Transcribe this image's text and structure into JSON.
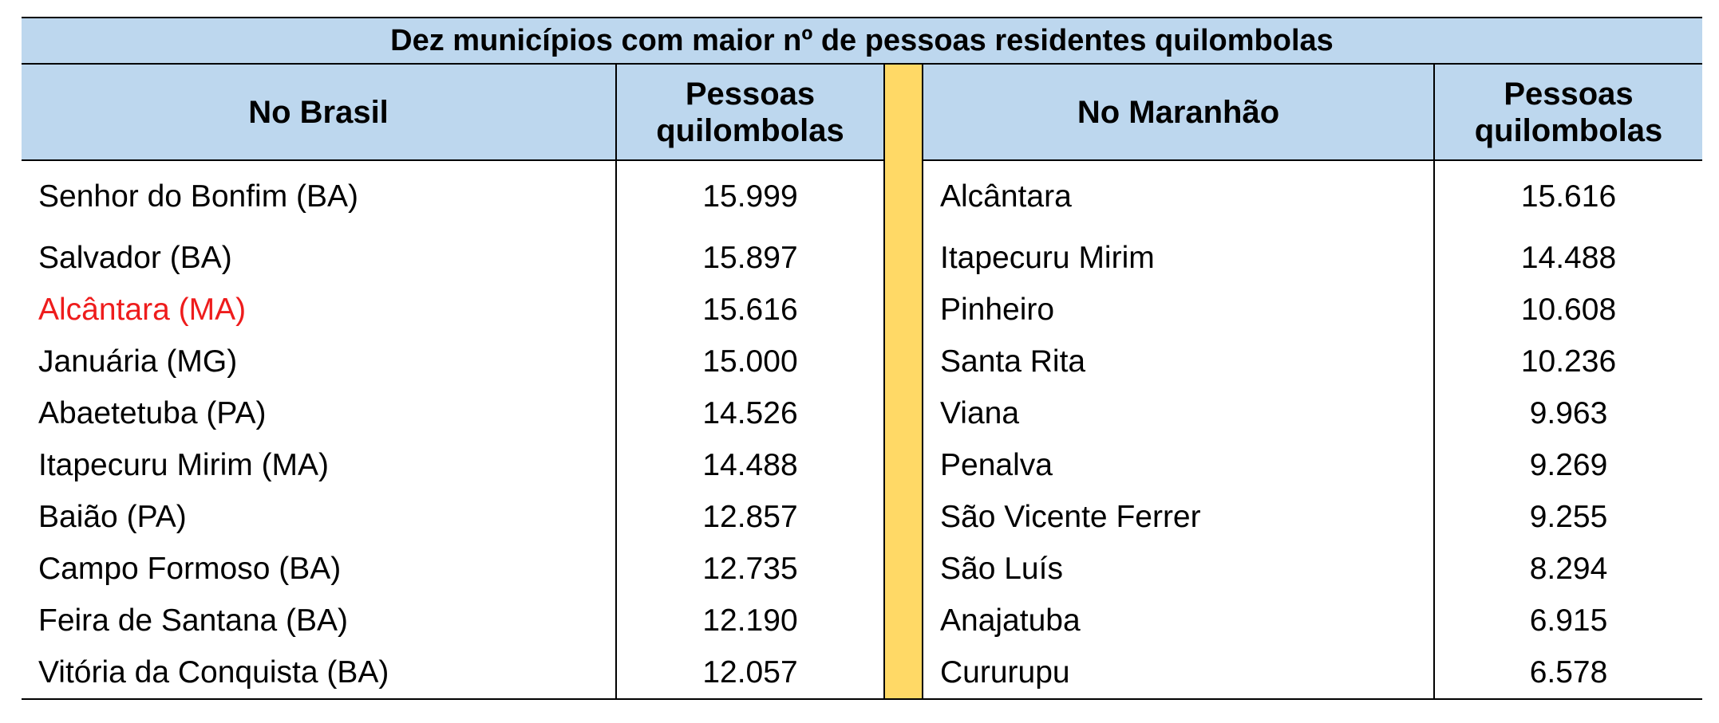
{
  "table": {
    "title": "Dez municípios com maior nº de pessoas residentes quilombolas",
    "headers": {
      "brasil": "No Brasil",
      "brasil_count": "Pessoas quilombolas",
      "maranhao": "No Maranhão",
      "maranhao_count": "Pessoas quilombolas"
    },
    "colors": {
      "header_bg": "#bdd7ee",
      "separator_bg": "#ffd966",
      "highlight_text": "#ee1c1c"
    },
    "rows": [
      {
        "brasil_city": "Senhor do Bonfim (BA)",
        "brasil_value": "15.999",
        "maranhao_city": "Alcântara",
        "maranhao_value": "15.616"
      },
      {
        "brasil_city": "Salvador (BA)",
        "brasil_value": "15.897",
        "maranhao_city": "Itapecuru Mirim",
        "maranhao_value": "14.488"
      },
      {
        "brasil_city": "Alcântara (MA)",
        "brasil_value": "15.616",
        "maranhao_city": "Pinheiro",
        "maranhao_value": "10.608",
        "highlight": true
      },
      {
        "brasil_city": "Januária (MG)",
        "brasil_value": "15.000",
        "maranhao_city": "Santa Rita",
        "maranhao_value": "10.236"
      },
      {
        "brasil_city": "Abaetetuba (PA)",
        "brasil_value": "14.526",
        "maranhao_city": "Viana",
        "maranhao_value": "9.963"
      },
      {
        "brasil_city": "Itapecuru Mirim (MA)",
        "brasil_value": "14.488",
        "maranhao_city": "Penalva",
        "maranhao_value": "9.269"
      },
      {
        "brasil_city": "Baião (PA)",
        "brasil_value": "12.857",
        "maranhao_city": "São Vicente Ferrer",
        "maranhao_value": "9.255"
      },
      {
        "brasil_city": "Campo Formoso (BA)",
        "brasil_value": "12.735",
        "maranhao_city": "São Luís",
        "maranhao_value": "8.294"
      },
      {
        "brasil_city": "Feira de Santana (BA)",
        "brasil_value": "12.190",
        "maranhao_city": "Anajatuba",
        "maranhao_value": "6.915"
      },
      {
        "brasil_city": "Vitória da Conquista (BA)",
        "brasil_value": "12.057",
        "maranhao_city": "Cururupu",
        "maranhao_value": "6.578"
      }
    ]
  }
}
